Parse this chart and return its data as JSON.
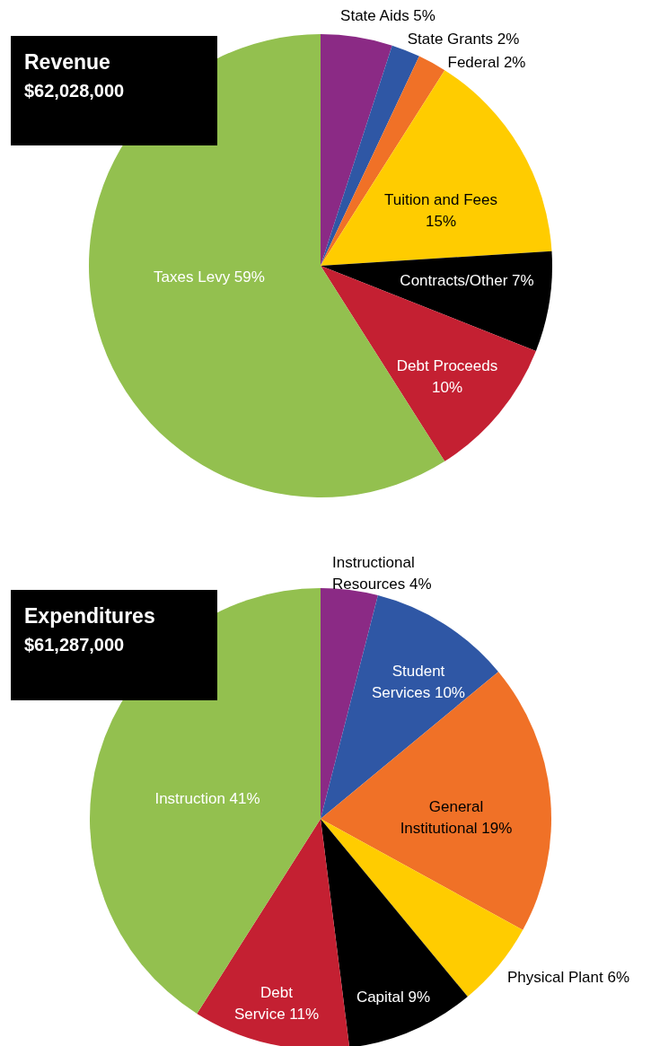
{
  "chart_data": [
    {
      "type": "pie",
      "title": "Revenue",
      "subtitle": "$62,028,000",
      "categories": [
        "State Aids",
        "State Grants",
        "Federal",
        "Tuition and Fees",
        "Contracts/Other",
        "Debt Proceeds",
        "Taxes Levy"
      ],
      "values": [
        5,
        2,
        2,
        15,
        7,
        10,
        59
      ],
      "value_labels": [
        "5%",
        "2%",
        "2%",
        "15%",
        "7%",
        "10%",
        "59%"
      ],
      "colors": [
        "#8b2a85",
        "#2f57a5",
        "#f07127",
        "#ffcc00",
        "#000000",
        "#c42032",
        "#93c04f"
      ]
    },
    {
      "type": "pie",
      "title": "Expenditures",
      "subtitle": "$61,287,000",
      "categories": [
        "Instructional Resources",
        "Student Services",
        "General Institutional",
        "Physical Plant",
        "Capital",
        "Debt Service",
        "Instruction"
      ],
      "values": [
        4,
        10,
        19,
        6,
        9,
        11,
        41
      ],
      "value_labels": [
        "4%",
        "10%",
        "19%",
        "6%",
        "9%",
        "11%",
        "41%"
      ],
      "colors": [
        "#8b2a85",
        "#2f57a5",
        "#f07127",
        "#ffcc00",
        "#000000",
        "#c42032",
        "#93c04f"
      ]
    }
  ]
}
